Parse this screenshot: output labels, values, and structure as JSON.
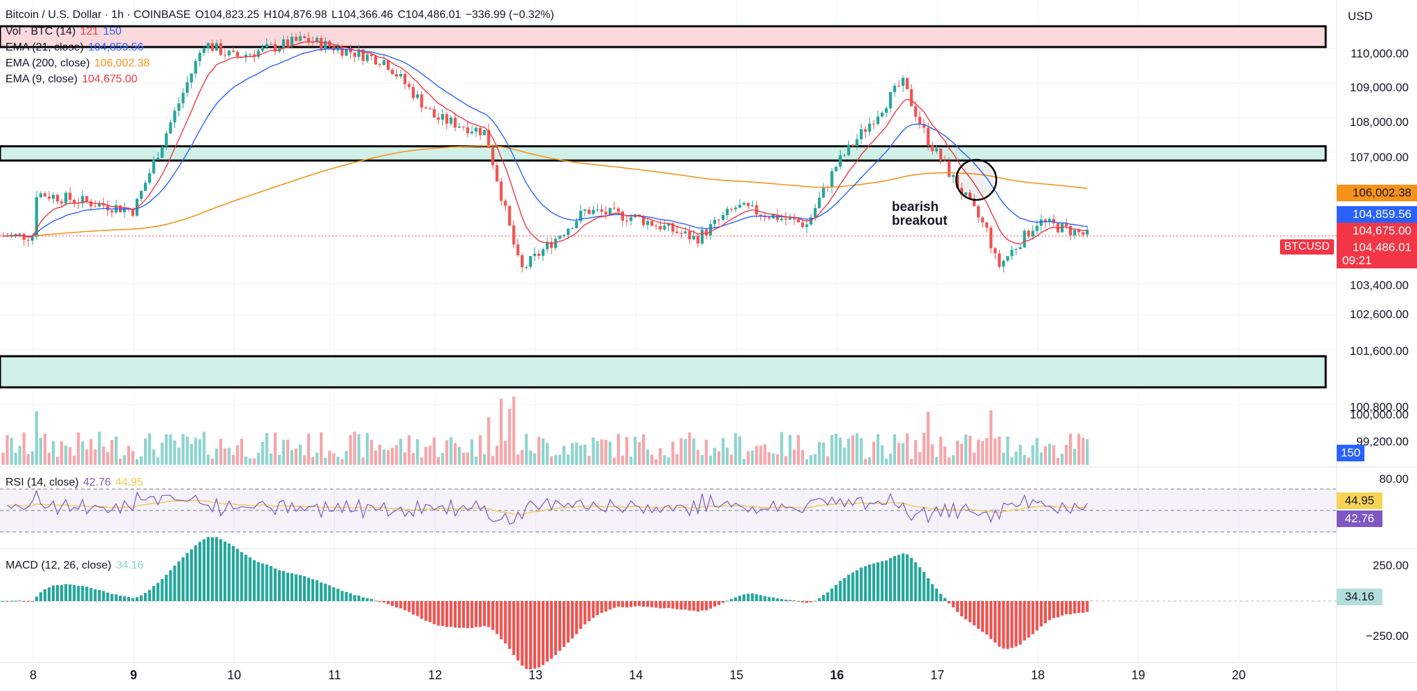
{
  "header": {
    "symbol": "Bitcoin / U.S. Dollar · 1h · COINBASE",
    "open": "O104,823.25",
    "high": "H104,876.98",
    "low": "L104,366.46",
    "close": "C104,486.01",
    "change": "−336.99 (−0.32%)",
    "indicators": [
      {
        "label": "Vol · BTC (14)",
        "v1": "121",
        "v2": "150",
        "c1": "#f23645",
        "c2": "#2962ff"
      },
      {
        "label": "EMA (21, close)",
        "v1": "104,859.56",
        "c1": "#2962ff"
      },
      {
        "label": "EMA (200, close)",
        "v1": "106,002.38",
        "c1": "#f7931a"
      },
      {
        "label": "EMA (9, close)",
        "v1": "104,675.00",
        "c1": "#e91e63"
      }
    ]
  },
  "currency": "USD",
  "price_axis": [
    "110,000.00",
    "109,000.00",
    "108,000.00",
    "107,000.00",
    "103,400.00",
    "102,600.00",
    "101,600.00",
    "100,800.00",
    "100,000.00",
    "99,200.00"
  ],
  "price_tags": {
    "ema200": "106,002.38",
    "ema21": "104,859.56",
    "ema9": "104,675.00",
    "last": "104,486.01",
    "countdown": "09:21",
    "symbol_label": "BTCUSD",
    "vol_sma": "150"
  },
  "annotation": {
    "line1": "bearish",
    "line2": "breakout"
  },
  "rsi": {
    "label": "RSI (14, close)",
    "value": "42.76",
    "ma": "44.95",
    "axis_top": "80.00"
  },
  "macd": {
    "label": "MACD (12, 26, close)",
    "value": "34.16",
    "axis_top": "250.00",
    "axis_bottom": "−250.00"
  },
  "x_axis": [
    {
      "label": "8",
      "bold": false
    },
    {
      "label": "9",
      "bold": true
    },
    {
      "label": "10",
      "bold": false
    },
    {
      "label": "11",
      "bold": false
    },
    {
      "label": "12",
      "bold": false
    },
    {
      "label": "13",
      "bold": false
    },
    {
      "label": "14",
      "bold": false
    },
    {
      "label": "15",
      "bold": false
    },
    {
      "label": "16",
      "bold": true
    },
    {
      "label": "17",
      "bold": false
    },
    {
      "label": "18",
      "bold": false
    },
    {
      "label": "19",
      "bold": false
    },
    {
      "label": "20",
      "bold": false
    }
  ],
  "colors": {
    "up": "#26a69a",
    "down": "#ef5350",
    "ema21": "#2962ff",
    "ema9": "#f23645",
    "ema200": "#f7931a",
    "rsi": "#7e57c2",
    "zone_green": "#d1f0e7",
    "zone_red": "#fbd9dc"
  },
  "chart_data": {
    "type": "candlestick",
    "x_labels": [
      "8",
      "9",
      "10",
      "11",
      "12",
      "13",
      "14",
      "15",
      "16",
      "17",
      "18",
      "19",
      "20"
    ],
    "approx_close_path": [
      {
        "x": "8",
        "y": 105700
      },
      {
        "x": "9",
        "y": 105200
      },
      {
        "x": "9.7",
        "y": 109900
      },
      {
        "x": "10",
        "y": 109500
      },
      {
        "x": "10.7",
        "y": 110000
      },
      {
        "x": "11.5",
        "y": 109400
      },
      {
        "x": "12",
        "y": 107800
      },
      {
        "x": "12.5",
        "y": 107400
      },
      {
        "x": "12.85",
        "y": 103500
      },
      {
        "x": "13.5",
        "y": 105200
      },
      {
        "x": "14",
        "y": 105000
      },
      {
        "x": "14.6",
        "y": 104400
      },
      {
        "x": "15",
        "y": 105300
      },
      {
        "x": "15.7",
        "y": 104800
      },
      {
        "x": "16",
        "y": 106500
      },
      {
        "x": "16.65",
        "y": 108800
      },
      {
        "x": "16.9",
        "y": 107200
      },
      {
        "x": "17.5",
        "y": 104600
      },
      {
        "x": "17.6",
        "y": 103600
      },
      {
        "x": "18",
        "y": 104900
      },
      {
        "x": "18.5",
        "y": 104486
      }
    ],
    "zones": [
      {
        "name": "resistance",
        "from": 110100,
        "to": 110700
      },
      {
        "name": "support-resistance",
        "from": 106600,
        "to": 107000
      },
      {
        "name": "support",
        "from": 100800,
        "to": 101700
      }
    ]
  }
}
